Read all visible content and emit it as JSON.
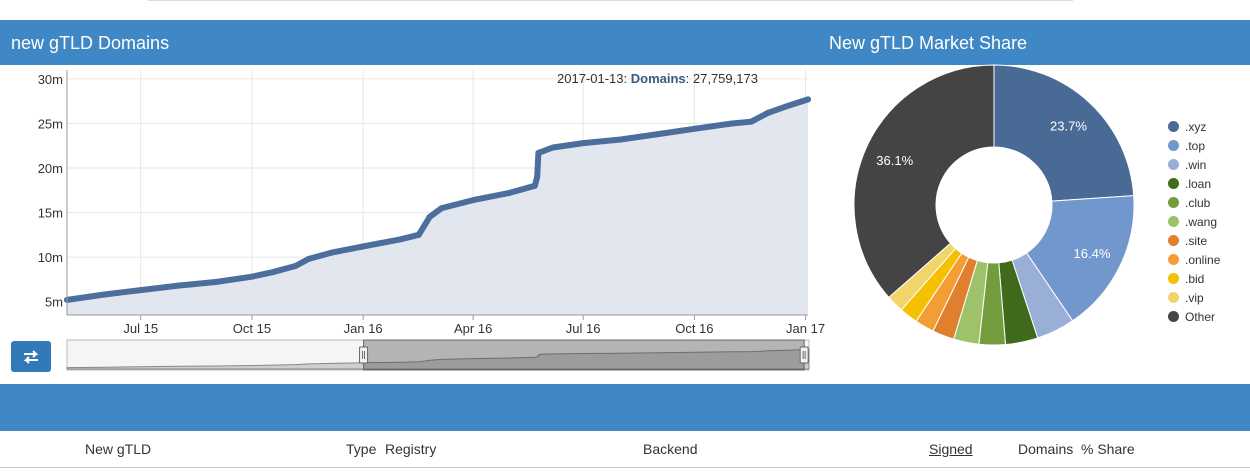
{
  "header": {
    "left_title": "new gTLD Domains",
    "right_title": "New gTLD Market Share"
  },
  "readout": {
    "date": "2017-01-13",
    "label": "Domains",
    "value": "27,759,173"
  },
  "chart_data": [
    {
      "type": "area",
      "title": "",
      "y_ticks": [
        "5m",
        "10m",
        "15m",
        "20m",
        "25m",
        "30m"
      ],
      "x_ticks": [
        "Jul 15",
        "Oct 15",
        "Jan 16",
        "Apr 16",
        "Jul 16",
        "Oct 16",
        "Jan 17"
      ],
      "ylim": [
        3.5,
        31
      ],
      "x_range": [
        "2015-05-15",
        "2017-01-17"
      ],
      "series": [
        {
          "x": [
            "2015-05-15",
            "2015-06-15",
            "2015-07-15",
            "2015-08-15",
            "2015-09-15",
            "2015-10-15",
            "2015-11-01",
            "2015-11-20",
            "2015-12-01",
            "2015-12-20",
            "2016-01-15",
            "2016-02-15",
            "2016-03-01",
            "2016-03-10",
            "2016-03-20",
            "2016-04-15",
            "2016-05-15",
            "2016-06-05",
            "2016-06-07",
            "2016-06-08",
            "2016-06-20",
            "2016-07-15",
            "2016-08-15",
            "2016-09-15",
            "2016-10-15",
            "2016-11-15",
            "2016-12-01",
            "2016-12-15",
            "2017-01-01",
            "2017-01-17"
          ],
          "y": [
            5.2,
            5.8,
            6.3,
            6.8,
            7.2,
            7.8,
            8.3,
            9.0,
            9.8,
            10.5,
            11.2,
            12.0,
            12.5,
            14.5,
            15.5,
            16.4,
            17.2,
            18.0,
            19.0,
            21.7,
            22.3,
            22.8,
            23.2,
            23.8,
            24.4,
            25.0,
            25.2,
            26.2,
            27.0,
            27.7
          ]
        }
      ],
      "grid": true,
      "color": "#4b6e9c"
    },
    {
      "type": "pie",
      "title": "",
      "categories": [
        ".xyz",
        ".top",
        ".win",
        ".loan",
        ".club",
        ".wang",
        ".site",
        ".online",
        ".bid",
        ".vip",
        "Other"
      ],
      "values": [
        23.7,
        16.4,
        4.4,
        3.7,
        3.0,
        2.9,
        2.5,
        2.2,
        2.1,
        2.0,
        36.1
      ],
      "labels_shown": [
        "23.7%",
        "16.4%",
        "36.1%"
      ],
      "colors": [
        "#4a6a96",
        "#7197cd",
        "#9aafd8",
        "#3f6a1b",
        "#739c3d",
        "#9ec26a",
        "#e07f2d",
        "#f49d34",
        "#f5c000",
        "#f1d46a",
        "#444444"
      ]
    }
  ],
  "table": {
    "headers": [
      "New gTLD",
      "Type",
      "Registry",
      "Backend",
      "Signed",
      "Domains",
      "% Share"
    ]
  }
}
